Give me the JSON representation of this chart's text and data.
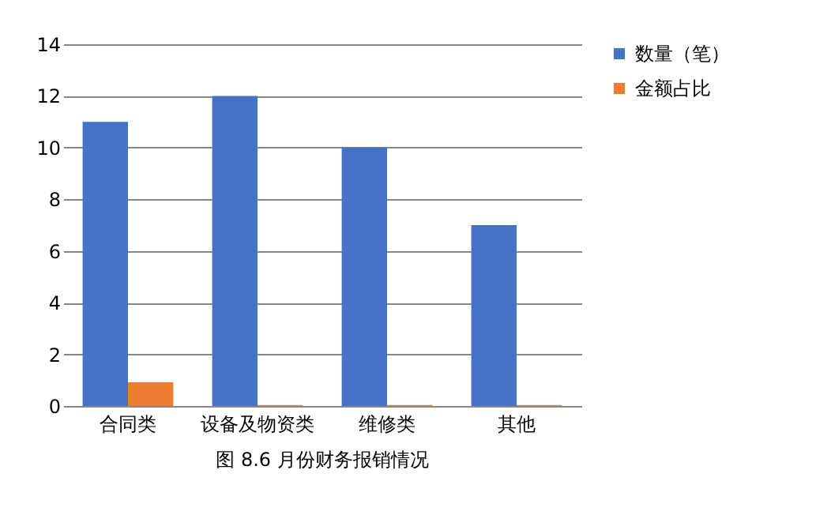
{
  "chart_data": {
    "type": "bar",
    "title": "图 8.6 月份财务报销情况",
    "categories": [
      "合同类",
      "设备及物资类",
      "维修类",
      "其他"
    ],
    "series": [
      {
        "name": "数量（笔）",
        "color": "#4472c4",
        "values": [
          11,
          12,
          10,
          7
        ]
      },
      {
        "name": "金额占比",
        "color": "#ed7d31",
        "values": [
          0.92,
          0.04,
          0.04,
          0.04
        ]
      }
    ],
    "ylim": [
      0,
      14
    ],
    "yticks": [
      0,
      2,
      4,
      6,
      8,
      10,
      12,
      14
    ],
    "grid": "y",
    "legend": "right"
  }
}
